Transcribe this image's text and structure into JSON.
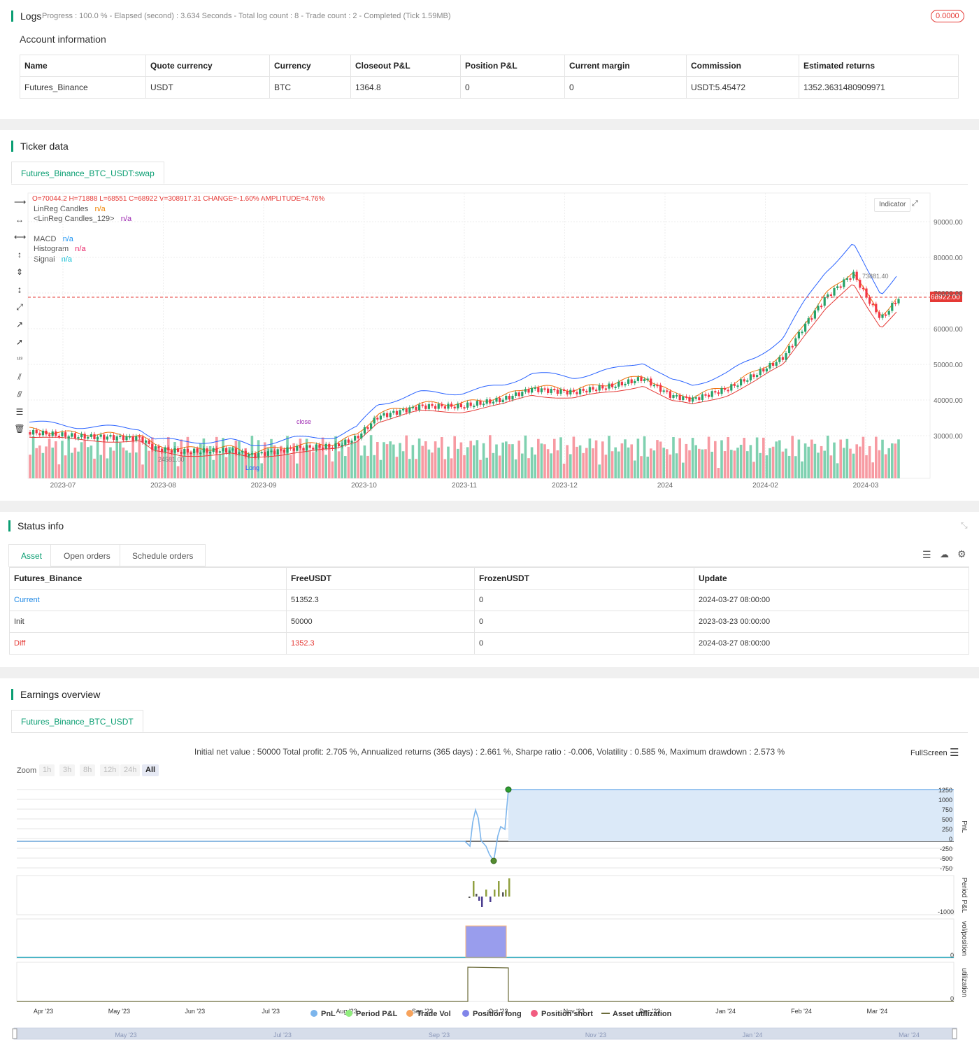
{
  "logs": {
    "title": "Logs",
    "progress_text": "Progress : 100.0 % - Elapsed (second) : 3.634  Seconds - Total log count : 8 - Trade count : 2 - Completed (Tick 1.59MB)",
    "badge": "0.0000"
  },
  "account": {
    "title": "Account information",
    "headers": [
      "Name",
      "Quote currency",
      "Currency",
      "Closeout P&L",
      "Position P&L",
      "Current margin",
      "Commission",
      "Estimated returns"
    ],
    "row": [
      "Futures_Binance",
      "USDT",
      "BTC",
      "1364.8",
      "0",
      "0",
      "USDT:5.45472",
      "1352.3631480909971"
    ]
  },
  "ticker": {
    "title": "Ticker data",
    "tab": "Futures_Binance_BTC_USDT:swap",
    "ohlc": "O=70044.2 H=71888 L=68551 C=68922 V=308917.31 CHANGE=-1.60% AMPLITUDE=4.76%",
    "indicator_btn": "Indicator",
    "legend": [
      {
        "name": "LinReg Candles",
        "value": "n/a",
        "color": "#f0890a"
      },
      {
        "name": "<LinReg Candles_129>",
        "value": "n/a",
        "color": "#9c27b0"
      },
      {
        "name": "MACD",
        "value": "n/a",
        "color": "#2196f3"
      },
      {
        "name": "Histogram",
        "value": "n/a",
        "color": "#e91e63"
      },
      {
        "name": "Signal",
        "value": "n/a",
        "color": "#00bcd4"
      }
    ],
    "price_label": "68922.00",
    "high_annotation": "73881.40",
    "low_annotation": "24581.00",
    "close_label": "close",
    "long_label": "Long",
    "y_ticks": [
      "90000.00",
      "80000.00",
      "70000.00",
      "60000.00",
      "50000.00",
      "40000.00",
      "30000.00"
    ],
    "x_ticks": [
      "2023-07",
      "2023-08",
      "2023-09",
      "2023-10",
      "2023-11",
      "2023-12",
      "2024",
      "2024-02",
      "2024-03"
    ]
  },
  "status": {
    "title": "Status info",
    "tabs": [
      "Asset",
      "Open orders",
      "Schedule orders"
    ],
    "headers": [
      "Futures_Binance",
      "FreeUSDT",
      "FrozenUSDT",
      "Update"
    ],
    "rows": [
      [
        "Current",
        "51352.3",
        "0",
        "2024-03-27 08:00:00"
      ],
      [
        "Init",
        "50000",
        "0",
        "2023-03-23 00:00:00"
      ],
      [
        "Diff",
        "1352.3",
        "0",
        "2024-03-27 08:00:00"
      ]
    ]
  },
  "earnings": {
    "title": "Earnings overview",
    "tab": "Futures_Binance_BTC_USDT",
    "summary": "Initial net value : 50000 Total profit: 2.705 %, Annualized returns (365 days) : 2.661 %, Sharpe ratio : -0.006, Volatility : 0.585 %, Maximum drawdown : 2.573 %",
    "fullscreen": "FullScreen",
    "zoom_label": "Zoom",
    "zoom_options": [
      "1h",
      "3h",
      "8h",
      "12h",
      "24h",
      "All"
    ],
    "pnl_axis": [
      "1250",
      "1000",
      "750",
      "500",
      "250",
      "0",
      "-250",
      "-500",
      "-750"
    ],
    "period_axis": [
      "-1000"
    ],
    "vol_axis": [
      "0"
    ],
    "util_axis": [
      "0"
    ],
    "axis_titles": [
      "PnL",
      "Period P&L",
      "vol/position",
      "utilization"
    ],
    "x_ticks": [
      "Apr '23",
      "May '23",
      "Jun '23",
      "Jul '23",
      "Aug '23",
      "Sep '23",
      "Oct '23",
      "Nov '23",
      "Dec '23",
      "Jan '24",
      "Feb '24",
      "Mar '24"
    ],
    "nav_ticks": [
      "May '23",
      "Jul '23",
      "Sep '23",
      "Nov '23",
      "Jan '24",
      "Mar '24"
    ],
    "legend": [
      {
        "name": "PnL",
        "color": "#7cb5ec"
      },
      {
        "name": "Period P&L",
        "color": "#90ed7d"
      },
      {
        "name": "Trade Vol",
        "color": "#f7a35c"
      },
      {
        "name": "Position long",
        "color": "#8085e9"
      },
      {
        "name": "Position short",
        "color": "#f15c80"
      },
      {
        "name": "Asset utilization",
        "color": "#6b6b3a"
      }
    ]
  }
}
